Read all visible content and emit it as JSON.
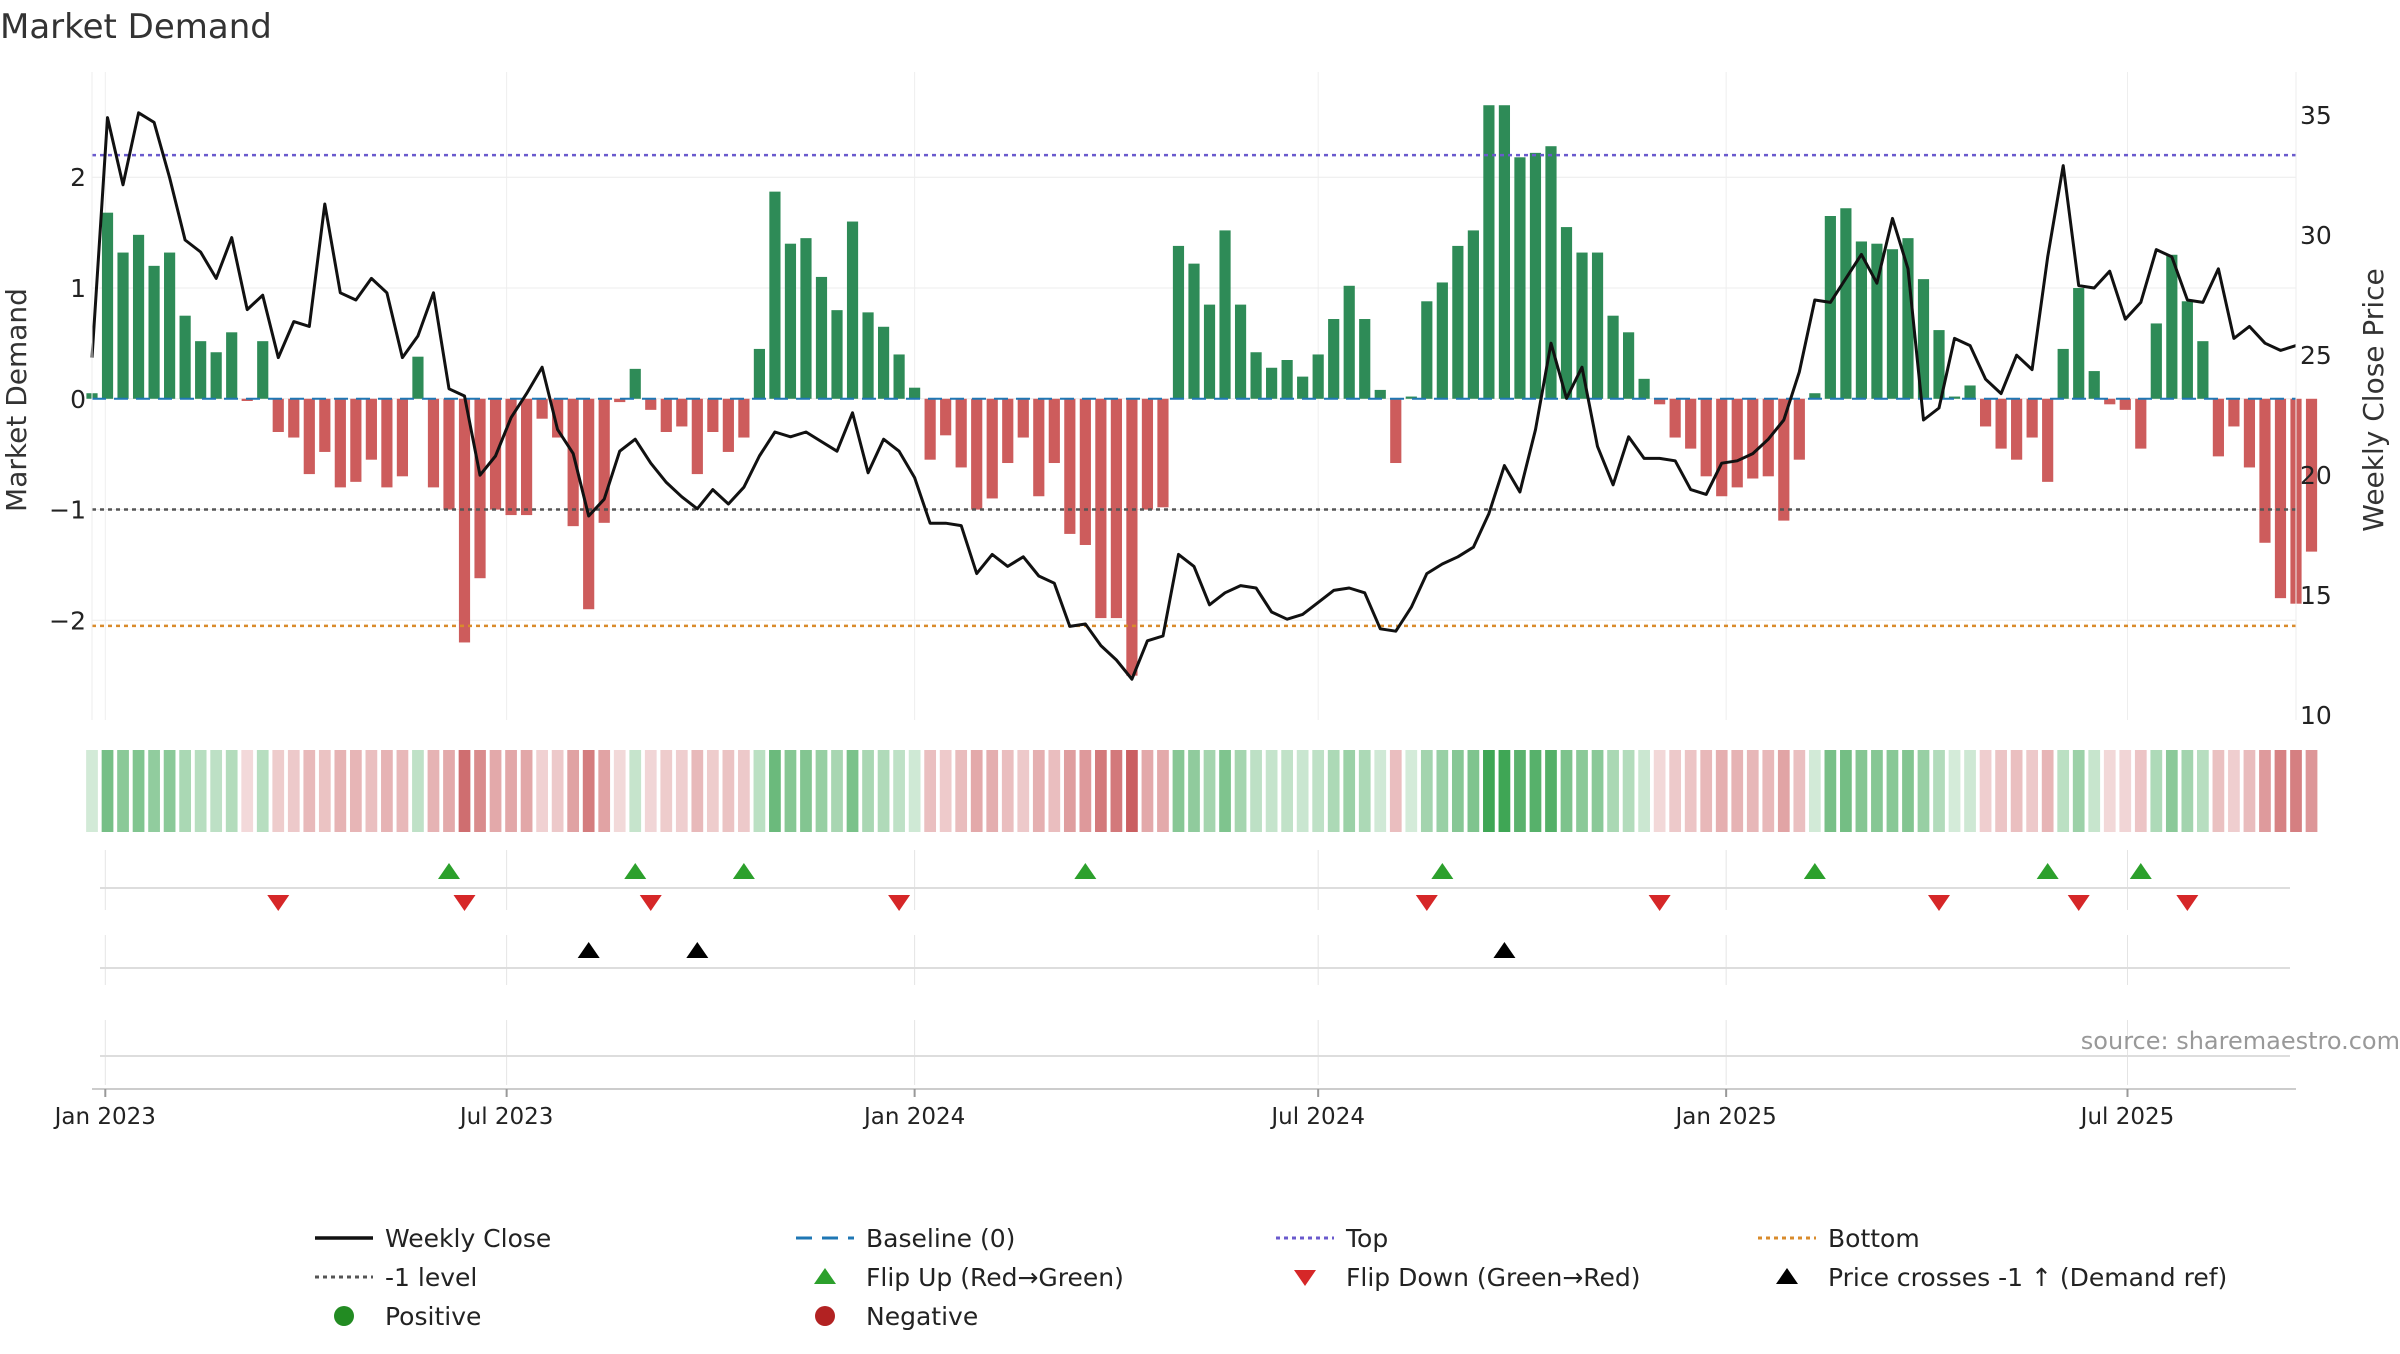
{
  "chart_data": {
    "type": "bar",
    "title": "Market Demand",
    "ylabel_left": "Market Demand",
    "ylabel_right": "Weekly Close Price",
    "x_start": "2022-12-26",
    "x_end": "2025-09-15",
    "x_ticks": [
      {
        "date": "2023-01-01",
        "label": "Jan 2023"
      },
      {
        "date": "2023-07-01",
        "label": "Jul 2023"
      },
      {
        "date": "2024-01-01",
        "label": "Jan 2024"
      },
      {
        "date": "2024-07-01",
        "label": "Jul 2024"
      },
      {
        "date": "2025-01-01",
        "label": "Jan 2025"
      },
      {
        "date": "2025-07-01",
        "label": "Jul 2025"
      }
    ],
    "left_axis": {
      "ylim": [
        -2.9,
        2.95
      ],
      "ticks": [
        -2,
        -1,
        0,
        1,
        2
      ],
      "tick_labels": [
        "−2",
        "−1",
        "0",
        "1",
        "2"
      ]
    },
    "right_axis": {
      "ylim": [
        9.8,
        36.8
      ],
      "ticks": [
        10,
        15,
        20,
        25,
        30,
        35
      ],
      "tick_labels": [
        "10",
        "15",
        "20",
        "25",
        "30",
        "35"
      ]
    },
    "reference_lines": {
      "top": 2.2,
      "minus_one": -1.0,
      "bottom": -2.05,
      "baseline": 0
    },
    "demand_start": "2022-12-26",
    "demand": [
      0.05,
      1.68,
      1.32,
      1.48,
      1.2,
      1.32,
      0.75,
      0.52,
      0.42,
      0.6,
      -0.02,
      0.52,
      -0.3,
      -0.35,
      -0.68,
      -0.48,
      -0.8,
      -0.75,
      -0.55,
      -0.8,
      -0.7,
      0.38,
      -0.8,
      -1.0,
      -2.2,
      -1.62,
      -1.0,
      -1.05,
      -1.05,
      -0.18,
      -0.35,
      -1.15,
      -1.9,
      -1.12,
      -0.03,
      0.27,
      -0.1,
      -0.3,
      -0.25,
      -0.68,
      -0.3,
      -0.48,
      -0.35,
      0.45,
      1.87,
      1.4,
      1.45,
      1.1,
      0.8,
      1.6,
      0.78,
      0.65,
      0.4,
      0.1,
      -0.55,
      -0.33,
      -0.62,
      -1.0,
      -0.9,
      -0.58,
      -0.35,
      -0.88,
      -0.58,
      -1.22,
      -1.32,
      -1.98,
      -1.98,
      -2.5,
      -1.0,
      -0.98,
      1.38,
      1.22,
      0.85,
      1.52,
      0.85,
      0.42,
      0.28,
      0.35,
      0.2,
      0.4,
      0.72,
      1.02,
      0.72,
      0.08,
      -0.58,
      0.02,
      0.88,
      1.05,
      1.38,
      1.52,
      2.65,
      2.65,
      2.18,
      2.22,
      2.28,
      1.55,
      1.32,
      1.32,
      0.75,
      0.6,
      0.18,
      -0.05,
      -0.35,
      -0.45,
      -0.7,
      -0.88,
      -0.8,
      -0.72,
      -0.7,
      -1.1,
      -0.55,
      0.05,
      1.65,
      1.72,
      1.42,
      1.4,
      1.35,
      1.45,
      1.08,
      0.62,
      0.02,
      0.12,
      -0.25,
      -0.45,
      -0.55,
      -0.35,
      -0.75,
      0.45,
      1.0,
      0.25,
      -0.05,
      -0.1,
      -0.45,
      0.68,
      1.3,
      0.88,
      0.52,
      -0.52,
      -0.25,
      -0.62,
      -1.3,
      -1.8,
      -1.85,
      -1.38
    ],
    "close": [
      24.9,
      34.9,
      32.1,
      35.1,
      34.7,
      32.4,
      29.8,
      29.3,
      28.2,
      29.9,
      26.9,
      27.5,
      24.9,
      26.4,
      26.2,
      31.3,
      27.6,
      27.3,
      28.2,
      27.6,
      24.9,
      25.8,
      27.6,
      23.6,
      23.3,
      20.0,
      20.8,
      22.4,
      23.4,
      24.5,
      21.9,
      20.9,
      18.3,
      19.0,
      21.0,
      21.5,
      20.5,
      19.7,
      19.1,
      18.6,
      19.4,
      18.8,
      19.5,
      20.8,
      21.8,
      21.6,
      21.8,
      21.4,
      21.0,
      22.6,
      20.1,
      21.5,
      21.0,
      19.9,
      18.0,
      18.0,
      17.9,
      15.9,
      16.7,
      16.2,
      16.6,
      15.8,
      15.5,
      13.7,
      13.8,
      12.9,
      12.3,
      11.5,
      13.1,
      13.3,
      16.7,
      16.2,
      14.6,
      15.1,
      15.4,
      15.3,
      14.3,
      14.0,
      14.2,
      14.7,
      15.2,
      15.3,
      15.1,
      13.6,
      13.5,
      14.5,
      15.9,
      16.3,
      16.6,
      17.0,
      18.4,
      20.4,
      19.3,
      21.9,
      25.5,
      23.2,
      24.5,
      21.2,
      19.6,
      21.6,
      20.7,
      20.7,
      20.6,
      19.4,
      19.2,
      20.5,
      20.6,
      20.9,
      21.5,
      22.3,
      24.3,
      27.3,
      27.2,
      28.2,
      29.2,
      28.0,
      30.7,
      28.6,
      22.3,
      22.8,
      25.7,
      25.4,
      24.0,
      23.4,
      25.0,
      24.4,
      29.1,
      32.9,
      27.9,
      27.8,
      28.5,
      26.5,
      27.2,
      29.4,
      29.1,
      27.3,
      27.2,
      28.6,
      25.7,
      26.2,
      25.5,
      25.2,
      25.4
    ],
    "flip_up": [
      "2023-06-05",
      "2023-08-28",
      "2023-10-16",
      "2024-03-18",
      "2024-08-26",
      "2025-02-10",
      "2025-05-26",
      "2025-07-07"
    ],
    "flip_down": [
      "2023-03-20",
      "2023-06-12",
      "2023-09-04",
      "2023-12-25",
      "2024-08-19",
      "2024-12-02",
      "2025-04-07",
      "2025-06-09",
      "2025-07-28"
    ],
    "price_cross_up": [
      "2023-08-07",
      "2023-09-25",
      "2024-09-23"
    ],
    "colors": {
      "pos_bar": "#2e8b57",
      "neg_bar": "#cd5c5c",
      "close_line": "#111111",
      "baseline": "#1f77b4",
      "top": "#6a5acd",
      "minus_one": "#555555",
      "bottom": "#d98b2b",
      "flip_up": "#2ca02c",
      "flip_down": "#d62728",
      "cross": "#000000"
    },
    "legend": [
      {
        "label": "Weekly Close",
        "kind": "line-solid",
        "color": "#111111"
      },
      {
        "label": "Baseline (0)",
        "kind": "line-dashed",
        "color": "#1f77b4"
      },
      {
        "label": "Top",
        "kind": "line-dotted",
        "color": "#6a5acd"
      },
      {
        "label": "Bottom",
        "kind": "line-dotted",
        "color": "#d98b2b"
      },
      {
        "label": "-1 level",
        "kind": "line-dotted",
        "color": "#555555"
      },
      {
        "label": "Flip Up (Red→Green)",
        "kind": "tri-up",
        "color": "#2ca02c"
      },
      {
        "label": "Flip Down (Green→Red)",
        "kind": "tri-down",
        "color": "#d62728"
      },
      {
        "label": "Price crosses -1 ↑ (Demand ref)",
        "kind": "tri-up",
        "color": "#000000"
      },
      {
        "label": "Positive",
        "kind": "dot",
        "color": "#228b22"
      },
      {
        "label": "Negative",
        "kind": "dot",
        "color": "#b22222"
      }
    ],
    "source": "source: sharemaestro.com"
  }
}
